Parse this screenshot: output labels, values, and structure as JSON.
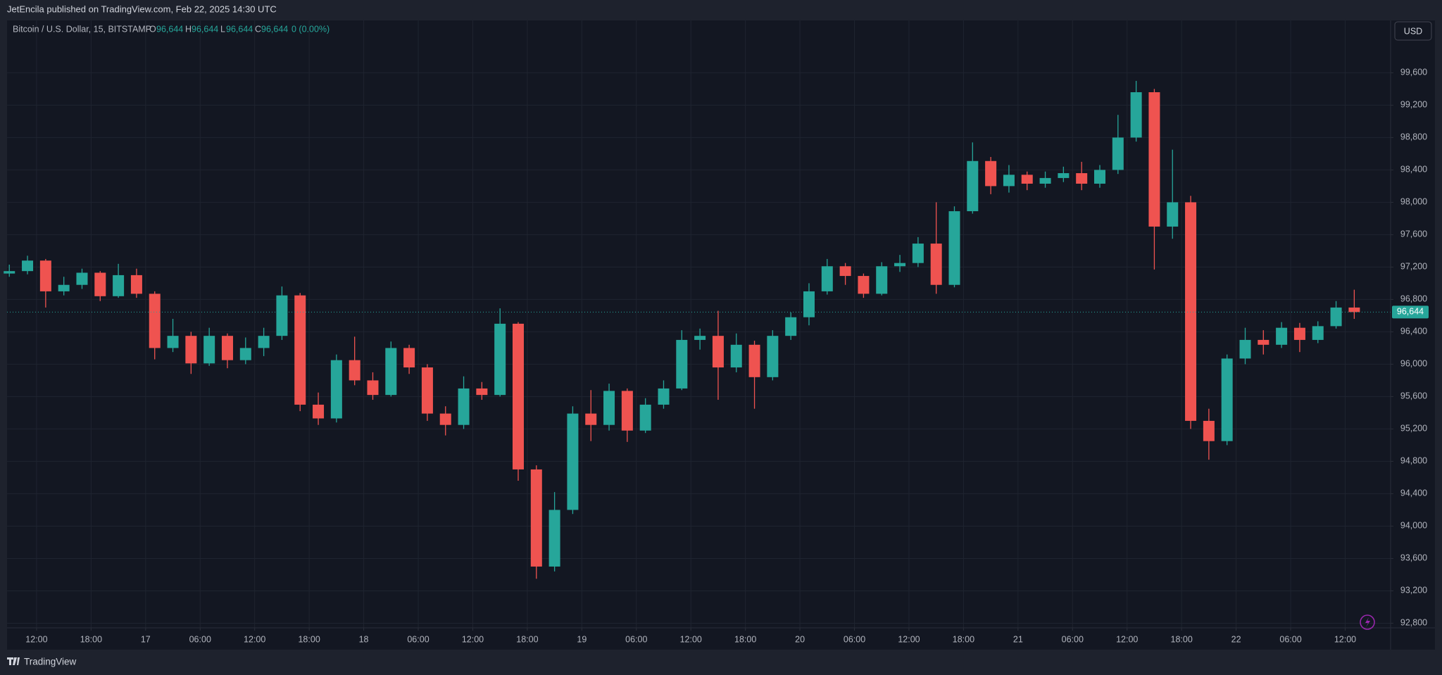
{
  "header": {
    "published": "JetEncila published on TradingView.com, Feb 22, 2025 14:30 UTC"
  },
  "legend": {
    "symbol": "Bitcoin / U.S. Dollar, 15, BITSTAMP",
    "o_label": "O",
    "o_value": "96,644",
    "h_label": "H",
    "h_value": "96,644",
    "l_label": "L",
    "l_value": "96,644",
    "c_label": "C",
    "c_value": "96,644",
    "change": "0 (0.00%)"
  },
  "currency_button": "USD",
  "footer": {
    "brand": "TradingView"
  },
  "chart_data": {
    "type": "candlestick",
    "grid": true,
    "colors": {
      "up": "#26a69a",
      "down": "#ef5350",
      "background": "#131722",
      "grid": "#1f2430"
    },
    "last_price": {
      "value": 96644,
      "label": "96,644"
    },
    "xlim": [
      8.75,
      161
    ],
    "ylim": [
      92743,
      100247
    ],
    "xticks": [
      {
        "value": 12,
        "label": "12:00"
      },
      {
        "value": 18,
        "label": "18:00"
      },
      {
        "value": 24,
        "label": "17"
      },
      {
        "value": 30,
        "label": "06:00"
      },
      {
        "value": 36,
        "label": "12:00"
      },
      {
        "value": 42,
        "label": "18:00"
      },
      {
        "value": 48,
        "label": "18"
      },
      {
        "value": 54,
        "label": "06:00"
      },
      {
        "value": 60,
        "label": "12:00"
      },
      {
        "value": 66,
        "label": "18:00"
      },
      {
        "value": 72,
        "label": "19"
      },
      {
        "value": 78,
        "label": "06:00"
      },
      {
        "value": 84,
        "label": "12:00"
      },
      {
        "value": 90,
        "label": "18:00"
      },
      {
        "value": 96,
        "label": "20"
      },
      {
        "value": 102,
        "label": "06:00"
      },
      {
        "value": 108,
        "label": "12:00"
      },
      {
        "value": 114,
        "label": "18:00"
      },
      {
        "value": 120,
        "label": "21"
      },
      {
        "value": 126,
        "label": "06:00"
      },
      {
        "value": 132,
        "label": "12:00"
      },
      {
        "value": 138,
        "label": "18:00"
      },
      {
        "value": 144,
        "label": "22"
      },
      {
        "value": 150,
        "label": "06:00"
      },
      {
        "value": 156,
        "label": "12:00"
      }
    ],
    "yticks": [
      {
        "value": 92800,
        "label": "92,800"
      },
      {
        "value": 93200,
        "label": "93,200"
      },
      {
        "value": 93600,
        "label": "93,600"
      },
      {
        "value": 94000,
        "label": "94,000"
      },
      {
        "value": 94400,
        "label": "94,400"
      },
      {
        "value": 94800,
        "label": "94,800"
      },
      {
        "value": 95200,
        "label": "95,200"
      },
      {
        "value": 95600,
        "label": "95,600"
      },
      {
        "value": 96000,
        "label": "96,000"
      },
      {
        "value": 96400,
        "label": "96,400"
      },
      {
        "value": 96800,
        "label": "96,800"
      },
      {
        "value": 97200,
        "label": "97,200"
      },
      {
        "value": 97600,
        "label": "97,600"
      },
      {
        "value": 98000,
        "label": "98,000"
      },
      {
        "value": 98400,
        "label": "98,400"
      },
      {
        "value": 98800,
        "label": "98,800"
      },
      {
        "value": 99200,
        "label": "99,200"
      },
      {
        "value": 99600,
        "label": "99,600"
      }
    ],
    "x": [
      9,
      11,
      13,
      15,
      17,
      19,
      21,
      23,
      25,
      27,
      29,
      31,
      33,
      35,
      37,
      39,
      41,
      43,
      45,
      47,
      49,
      51,
      53,
      55,
      57,
      59,
      61,
      63,
      65,
      67,
      69,
      71,
      73,
      75,
      77,
      79,
      81,
      83,
      85,
      87,
      89,
      91,
      93,
      95,
      97,
      99,
      101,
      103,
      105,
      107,
      109,
      111,
      113,
      115,
      117,
      119,
      121,
      123,
      125,
      127,
      129,
      131,
      133,
      135,
      137,
      139,
      141,
      143,
      145,
      147,
      149,
      151,
      153,
      155,
      157
    ],
    "open": [
      97120,
      97150,
      97280,
      96900,
      96980,
      97130,
      96840,
      97100,
      96870,
      96200,
      96350,
      96010,
      96350,
      96050,
      96200,
      96350,
      96850,
      95500,
      95330,
      96050,
      95800,
      95620,
      96200,
      95960,
      95390,
      95250,
      95700,
      95620,
      96500,
      94700,
      93500,
      94200,
      95390,
      95250,
      95670,
      95180,
      95500,
      95700,
      96300,
      96350,
      95960,
      96240,
      95840,
      96350,
      96580,
      96900,
      97210,
      97090,
      96870,
      97210,
      97250,
      97490,
      96980,
      97890,
      98510,
      98200,
      98340,
      98230,
      98300,
      98360,
      98230,
      98400,
      98800,
      99360,
      97700,
      98000,
      95300,
      95050,
      96070,
      96300,
      96240,
      96450,
      96300,
      96470,
      96700
    ],
    "high": [
      97230,
      97340,
      97300,
      97080,
      97180,
      97150,
      97240,
      97180,
      96900,
      96560,
      96400,
      96450,
      96380,
      96330,
      96450,
      96960,
      96880,
      95650,
      96120,
      96340,
      95900,
      96280,
      96240,
      96000,
      95480,
      95850,
      95780,
      96690,
      96520,
      94750,
      94420,
      95480,
      95680,
      95760,
      95700,
      95580,
      95800,
      96420,
      96440,
      96660,
      96380,
      96290,
      96420,
      96640,
      97000,
      97300,
      97250,
      97120,
      97260,
      97350,
      97570,
      98000,
      97950,
      98740,
      98560,
      98460,
      98380,
      98380,
      98440,
      98500,
      98460,
      99080,
      99500,
      99400,
      98650,
      98080,
      95450,
      96120,
      96450,
      96420,
      96520,
      96510,
      96530,
      96780,
      96920
    ],
    "low": [
      97080,
      97110,
      96700,
      96850,
      96930,
      96780,
      96820,
      96820,
      96060,
      96150,
      95880,
      95980,
      95950,
      96000,
      96100,
      96300,
      95420,
      95250,
      95280,
      95740,
      95560,
      95600,
      95880,
      95300,
      95120,
      95200,
      95560,
      95600,
      94560,
      93350,
      93440,
      94150,
      95050,
      95180,
      95040,
      95150,
      95450,
      95680,
      96180,
      95560,
      95900,
      95450,
      95800,
      96300,
      96480,
      96860,
      96980,
      96820,
      96850,
      97140,
      97200,
      96870,
      96950,
      97860,
      98100,
      98120,
      98150,
      98180,
      98250,
      98150,
      98180,
      98350,
      98750,
      97170,
      97550,
      95200,
      94820,
      95000,
      96000,
      96120,
      96200,
      96150,
      96260,
      96440,
      96560
    ],
    "close": [
      97150,
      97280,
      96900,
      96980,
      97130,
      96840,
      97100,
      96870,
      96200,
      96350,
      96010,
      96350,
      96050,
      96200,
      96350,
      96850,
      95500,
      95330,
      96050,
      95800,
      95620,
      96200,
      95960,
      95390,
      95250,
      95700,
      95620,
      96500,
      94700,
      93500,
      94200,
      95390,
      95250,
      95670,
      95180,
      95500,
      95700,
      96300,
      96350,
      95960,
      96240,
      95840,
      96350,
      96580,
      96900,
      97210,
      97090,
      96870,
      97210,
      97250,
      97490,
      96980,
      97890,
      98510,
      98200,
      98340,
      98230,
      98300,
      98360,
      98230,
      98400,
      98800,
      99360,
      97700,
      98000,
      95300,
      95050,
      96070,
      96300,
      96240,
      96450,
      96300,
      96470,
      96700,
      96644
    ]
  }
}
